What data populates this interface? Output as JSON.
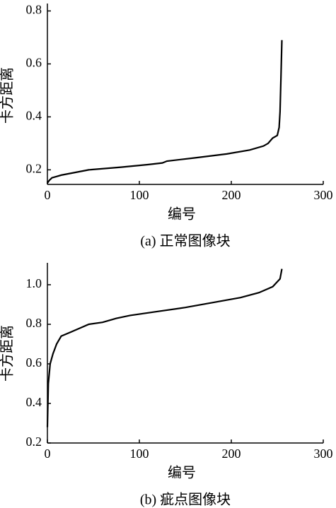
{
  "chart_data": [
    {
      "type": "line",
      "caption": "(a)  正常图像块",
      "x_label": "编号",
      "y_label": "卡方距离",
      "x": [
        0,
        2,
        5,
        10,
        15,
        30,
        45,
        80,
        110,
        125,
        130,
        160,
        195,
        220,
        235,
        240,
        245,
        250,
        252,
        253,
        254,
        255
      ],
      "values": [
        0.15,
        0.16,
        0.17,
        0.175,
        0.18,
        0.19,
        0.2,
        0.21,
        0.22,
        0.226,
        0.233,
        0.245,
        0.26,
        0.275,
        0.29,
        0.3,
        0.32,
        0.33,
        0.36,
        0.42,
        0.55,
        0.69
      ],
      "color": "#000000",
      "xlim": [
        0,
        300
      ],
      "xticks": [
        0,
        100,
        200,
        300
      ],
      "ylim": [
        0.145,
        0.82
      ],
      "yticks": [
        0.2,
        0.4,
        0.6,
        0.8
      ]
    },
    {
      "type": "line",
      "caption": "(b)  疵点图像块",
      "x_label": "编号",
      "y_label": "卡方距离",
      "x": [
        0,
        1,
        3,
        6,
        10,
        15,
        25,
        35,
        45,
        60,
        75,
        90,
        120,
        150,
        180,
        210,
        230,
        245,
        253,
        255
      ],
      "values": [
        0.28,
        0.5,
        0.6,
        0.65,
        0.7,
        0.74,
        0.76,
        0.78,
        0.8,
        0.81,
        0.83,
        0.845,
        0.865,
        0.885,
        0.91,
        0.935,
        0.96,
        0.99,
        1.03,
        1.08
      ],
      "color": "#000000",
      "xlim": [
        0,
        300
      ],
      "xticks": [
        0,
        100,
        200,
        300
      ],
      "ylim": [
        0.2,
        1.1
      ],
      "yticks": [
        0.2,
        0.4,
        0.6,
        0.8,
        {
          "value": 1,
          "label": "1.0"
        }
      ]
    }
  ]
}
